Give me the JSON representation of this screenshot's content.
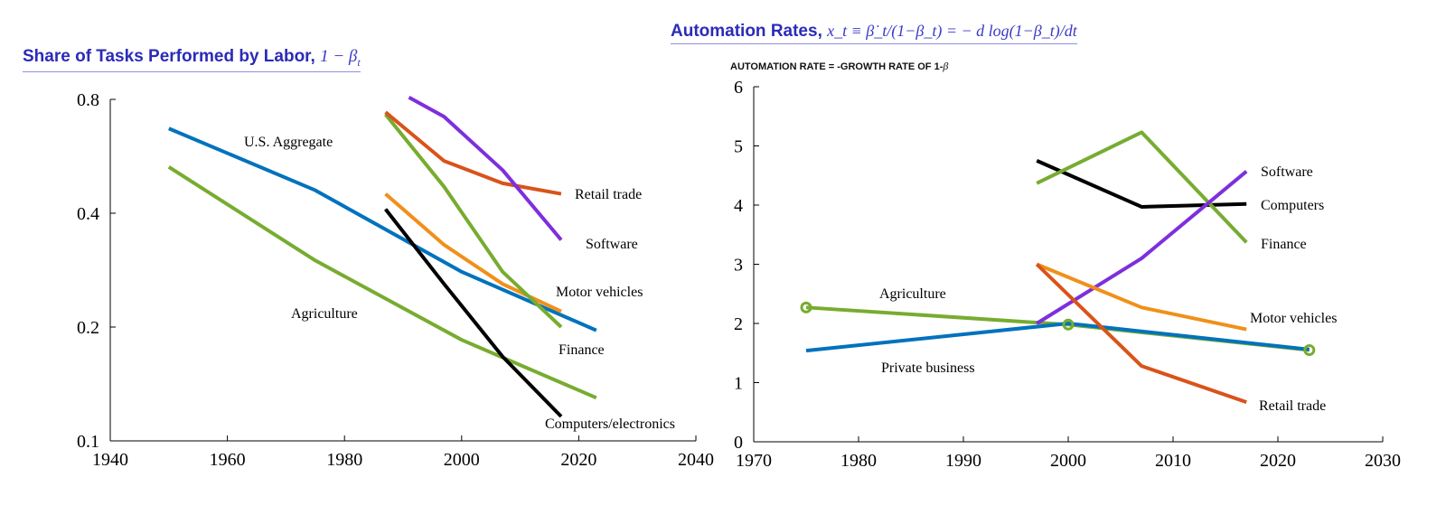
{
  "chart_data": [
    {
      "type": "line",
      "title": "Share of Tasks Performed by Labor,",
      "title_math": "1 − β",
      "title_math_sub": "t",
      "xlabel": "",
      "ylabel": "",
      "xlim": [
        1940,
        2040
      ],
      "ylim": [
        0.1,
        0.8
      ],
      "y_scale": "log",
      "x_ticks": [
        "1940",
        "1960",
        "1980",
        "2000",
        "2020",
        "2040"
      ],
      "y_ticks": [
        "0.1",
        "0.2",
        "0.4",
        "0.8"
      ],
      "grid": false,
      "series": [
        {
          "name": "U.S. Aggregate",
          "color": "#0072bd",
          "x": [
            1950,
            1975,
            2000,
            2023
          ],
          "y": [
            0.67,
            0.46,
            0.28,
            0.196
          ]
        },
        {
          "name": "Agriculture",
          "color": "#77ac30",
          "x": [
            1950,
            1975,
            2000,
            2023
          ],
          "y": [
            0.53,
            0.3,
            0.185,
            0.13
          ]
        },
        {
          "name": "Computers/electronics",
          "color": "#000000",
          "x": [
            1987,
            1997,
            2007,
            2017
          ],
          "y": [
            0.41,
            0.26,
            0.167,
            0.116
          ]
        },
        {
          "name": "Motor vehicles",
          "color": "#f0901a",
          "x": [
            1987,
            1997,
            2007,
            2017
          ],
          "y": [
            0.45,
            0.33,
            0.26,
            0.22
          ]
        },
        {
          "name": "Finance",
          "color": "#77ac30",
          "x": [
            1987,
            1997,
            2007,
            2017
          ],
          "y": [
            0.73,
            0.47,
            0.28,
            0.2
          ]
        },
        {
          "name": "Retail trade",
          "color": "#d95319",
          "x": [
            1987,
            1997,
            2007,
            2017
          ],
          "y": [
            0.74,
            0.55,
            0.48,
            0.45
          ]
        },
        {
          "name": "Software",
          "color": "#7e2fdc",
          "x": [
            1991,
            1997,
            2007,
            2017
          ],
          "y": [
            0.81,
            0.72,
            0.52,
            0.34
          ]
        }
      ]
    },
    {
      "type": "line",
      "title": "Automation Rates,",
      "title_math": "x_t ≡ β̇_t/(1−β_t) = − d log(1−β_t)/dt",
      "subtitle": "AUTOMATION RATE = -GROWTH RATE OF 1-",
      "subtitle_symbol": "β",
      "xlabel": "",
      "ylabel": "",
      "xlim": [
        1970,
        2030
      ],
      "ylim": [
        0,
        6
      ],
      "x_ticks": [
        "1970",
        "1980",
        "1990",
        "2000",
        "2010",
        "2020",
        "2030"
      ],
      "y_ticks": [
        "0",
        "1",
        "2",
        "3",
        "4",
        "5",
        "6"
      ],
      "grid": false,
      "series": [
        {
          "name": "Agriculture",
          "color": "#77ac30",
          "markers": true,
          "x": [
            1975,
            2000,
            2023
          ],
          "y": [
            2.27,
            1.98,
            1.55
          ]
        },
        {
          "name": "Private business",
          "color": "#0072bd",
          "x": [
            1975,
            2000,
            2023
          ],
          "y": [
            1.54,
            2.0,
            1.56
          ]
        },
        {
          "name": "Computers",
          "color": "#000000",
          "x": [
            1997,
            2007,
            2017
          ],
          "y": [
            4.75,
            3.97,
            4.02
          ]
        },
        {
          "name": "Finance",
          "color": "#77ac30",
          "x": [
            1997,
            2007,
            2017
          ],
          "y": [
            4.37,
            5.23,
            3.37
          ]
        },
        {
          "name": "Software",
          "color": "#7e2fdc",
          "x": [
            1997,
            2007,
            2017
          ],
          "y": [
            2.0,
            3.1,
            4.57
          ]
        },
        {
          "name": "Motor vehicles",
          "color": "#f0901a",
          "x": [
            1997,
            2007,
            2017
          ],
          "y": [
            3.0,
            2.27,
            1.9
          ]
        },
        {
          "name": "Retail trade",
          "color": "#d95319",
          "x": [
            1997,
            2007,
            2017
          ],
          "y": [
            3.0,
            1.28,
            0.67
          ]
        }
      ]
    }
  ]
}
